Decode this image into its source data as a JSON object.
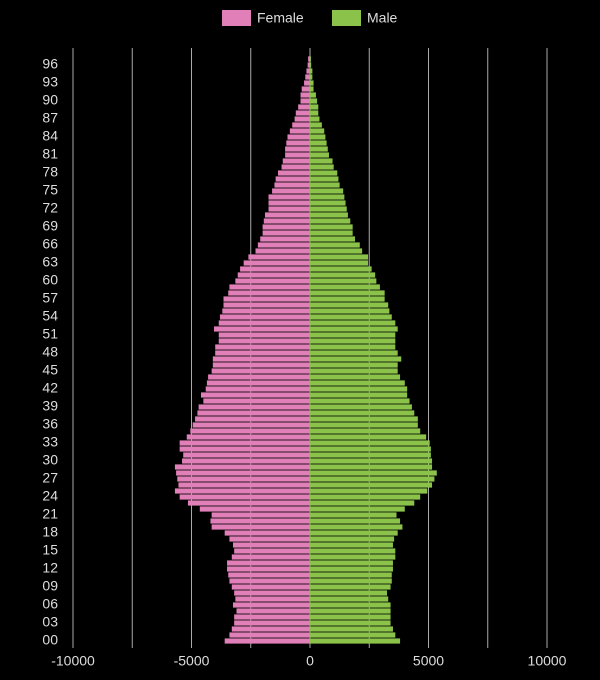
{
  "chart_data": {
    "type": "population_pyramid",
    "categories": [
      "00",
      null,
      null,
      "03",
      null,
      null,
      "06",
      null,
      null,
      "09",
      null,
      null,
      "12",
      null,
      null,
      "15",
      null,
      null,
      "18",
      null,
      null,
      "21",
      null,
      null,
      "24",
      null,
      null,
      "27",
      null,
      null,
      "30",
      null,
      null,
      "33",
      null,
      null,
      "36",
      null,
      null,
      "39",
      null,
      null,
      "42",
      null,
      null,
      "45",
      null,
      null,
      "48",
      null,
      null,
      "51",
      null,
      null,
      "54",
      null,
      null,
      "57",
      null,
      null,
      "60",
      null,
      null,
      "63",
      null,
      null,
      "66",
      null,
      null,
      "69",
      null,
      null,
      "72",
      null,
      null,
      "75",
      null,
      null,
      "78",
      null,
      null,
      "81",
      null,
      null,
      "84",
      null,
      null,
      "87",
      null,
      null,
      "90",
      null,
      null,
      "93",
      null,
      null,
      "96",
      null
    ],
    "series": [
      {
        "name": "Female",
        "color": "#e07fb8",
        "values": [
          -3600,
          -3400,
          -3300,
          -3200,
          -3200,
          -3100,
          -3250,
          -3150,
          -3200,
          -3300,
          -3400,
          -3450,
          -3500,
          -3500,
          -3300,
          -3200,
          -3250,
          -3400,
          -3600,
          -4150,
          -4200,
          -4150,
          -4650,
          -5150,
          -5500,
          -5700,
          -5550,
          -5600,
          -5650,
          -5700,
          -5400,
          -5350,
          -5500,
          -5500,
          -5200,
          -5050,
          -4950,
          -4850,
          -4750,
          -4700,
          -4500,
          -4600,
          -4400,
          -4350,
          -4300,
          -4150,
          -4100,
          -4100,
          -4000,
          -4000,
          -3850,
          -3850,
          -4050,
          -3850,
          -3800,
          -3700,
          -3650,
          -3650,
          -3450,
          -3400,
          -3150,
          -3050,
          -2950,
          -2800,
          -2600,
          -2300,
          -2200,
          -2100,
          -2000,
          -2000,
          -1950,
          -1900,
          -1750,
          -1750,
          -1750,
          -1600,
          -1500,
          -1450,
          -1350,
          -1200,
          -1150,
          -1050,
          -1050,
          -1000,
          -950,
          -850,
          -750,
          -650,
          -600,
          -500,
          -400,
          -400,
          -350,
          -250,
          -200,
          -150,
          -100,
          -80
        ]
      },
      {
        "name": "Male",
        "color": "#8bc34a",
        "values": [
          3800,
          3600,
          3500,
          3400,
          3400,
          3400,
          3400,
          3300,
          3250,
          3400,
          3450,
          3450,
          3500,
          3500,
          3600,
          3600,
          3500,
          3550,
          3700,
          3900,
          3800,
          3650,
          4000,
          4400,
          4650,
          4950,
          5150,
          5250,
          5350,
          5150,
          5150,
          5100,
          5100,
          5050,
          4900,
          4650,
          4550,
          4550,
          4400,
          4300,
          4200,
          4100,
          4100,
          4000,
          3800,
          3700,
          3700,
          3850,
          3700,
          3600,
          3600,
          3600,
          3700,
          3600,
          3450,
          3350,
          3300,
          3150,
          3150,
          2950,
          2800,
          2750,
          2600,
          2450,
          2450,
          2200,
          2100,
          1900,
          1800,
          1800,
          1700,
          1600,
          1550,
          1500,
          1450,
          1400,
          1250,
          1200,
          1150,
          1000,
          950,
          800,
          750,
          700,
          650,
          600,
          500,
          400,
          350,
          350,
          300,
          250,
          150,
          150,
          100,
          100,
          50,
          40
        ]
      }
    ],
    "xlim": [
      -10000,
      10000
    ],
    "xticks": [
      -10000,
      -5000,
      0,
      5000,
      10000
    ],
    "minor_xticks": [
      -7500,
      -2500,
      2500,
      7500
    ],
    "grid": true,
    "legend": "top"
  }
}
